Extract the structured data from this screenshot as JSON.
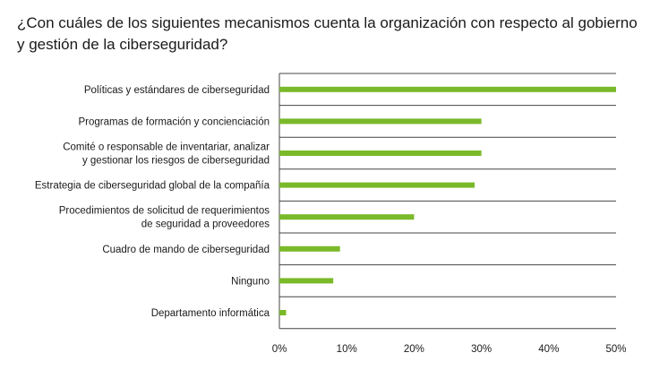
{
  "chart_data": {
    "type": "bar",
    "orientation": "horizontal",
    "title": "¿Con cuáles de los siguientes mecanismos cuenta la organización con respecto al gobierno y gestión de la ciberseguridad?",
    "categories": [
      [
        "Políticas y estándares de ciberseguridad"
      ],
      [
        "Programas de formación y concienciación"
      ],
      [
        "Comité o responsable de inventariar, analizar",
        "y gestionar los riesgos de ciberseguridad"
      ],
      [
        "Estrategia de ciberseguridad global de la compañía"
      ],
      [
        "Procedimientos de solicitud de requerimientos",
        "de seguridad a proveedores"
      ],
      [
        "Cuadro de mando de ciberseguridad"
      ],
      [
        "Ninguno"
      ],
      [
        "Departamento informática"
      ]
    ],
    "values": [
      50,
      30,
      30,
      29,
      20,
      9,
      8,
      1
    ],
    "xlim": [
      0,
      50
    ],
    "ticks": [
      "0%",
      "10%",
      "20%",
      "30%",
      "40%",
      "50%"
    ],
    "tick_values": [
      0,
      10,
      20,
      30,
      40,
      50
    ],
    "bar_color": "#7ab929",
    "grid": "horizontal separators"
  }
}
